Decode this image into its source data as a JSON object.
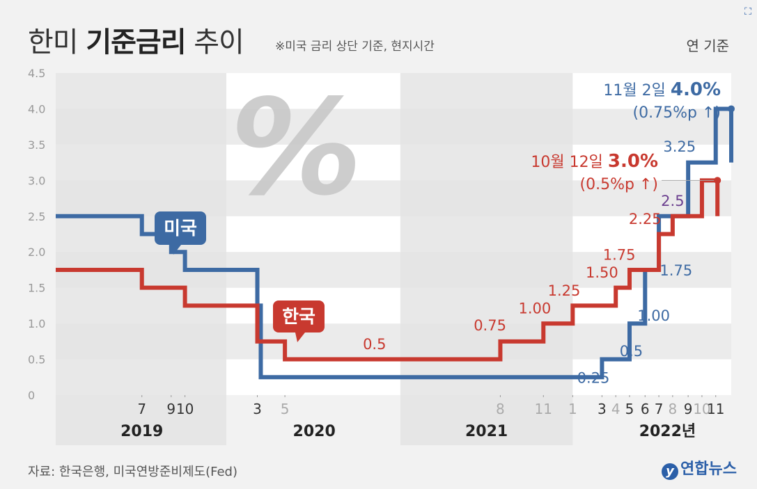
{
  "header": {
    "title_light": "한미",
    "title_bold": "기준금리",
    "title_tail": "추이",
    "note": "※미국 금리 상단 기준, 현지시간",
    "basis": "연 기준"
  },
  "footer": {
    "source": "자료: 한국은행, 미국연방준비제도(Fed)",
    "logo": "연합뉴스"
  },
  "colors": {
    "us": "#3d6aa3",
    "kr": "#c8392f",
    "band": "#e4e4e4",
    "gridAlt": "#ffffff",
    "text": "#444444",
    "purple": "#6b3f8f"
  },
  "chart_data": {
    "type": "line",
    "step": true,
    "ylim": [
      0,
      4.5
    ],
    "yticks": [
      "0",
      "0.5",
      "1.0",
      "1.5",
      "2.0",
      "2.5",
      "3.0",
      "3.5",
      "4.0",
      "4.5"
    ],
    "years": [
      "2019",
      "2020",
      "2021",
      "2022년"
    ],
    "month_ticks": [
      {
        "x": 2019.5,
        "label": "7",
        "faded": false
      },
      {
        "x": 2019.67,
        "label": "9",
        "faded": false
      },
      {
        "x": 2019.75,
        "label": "10",
        "faded": false
      },
      {
        "x": 2020.17,
        "label": "3",
        "faded": false
      },
      {
        "x": 2020.33,
        "label": "5",
        "faded": true
      },
      {
        "x": 2021.58,
        "label": "8",
        "faded": true
      },
      {
        "x": 2021.83,
        "label": "11",
        "faded": true
      },
      {
        "x": 2022.0,
        "label": "1",
        "faded": true
      },
      {
        "x": 2022.17,
        "label": "3",
        "faded": false
      },
      {
        "x": 2022.25,
        "label": "4",
        "faded": true
      },
      {
        "x": 2022.33,
        "label": "5",
        "faded": false
      },
      {
        "x": 2022.42,
        "label": "6",
        "faded": false
      },
      {
        "x": 2022.5,
        "label": "7",
        "faded": false
      },
      {
        "x": 2022.58,
        "label": "8",
        "faded": true
      },
      {
        "x": 2022.67,
        "label": "9",
        "faded": false
      },
      {
        "x": 2022.75,
        "label": "10",
        "faded": true
      },
      {
        "x": 2022.83,
        "label": "11",
        "faded": false
      }
    ],
    "series": [
      {
        "name": "미국",
        "points": [
          [
            2019.0,
            2.5
          ],
          [
            2019.5,
            2.25
          ],
          [
            2019.67,
            2.0
          ],
          [
            2019.75,
            1.75
          ],
          [
            2020.17,
            1.25
          ],
          [
            2020.19,
            0.25
          ],
          [
            2022.17,
            0.5
          ],
          [
            2022.33,
            1.0
          ],
          [
            2022.42,
            1.75
          ],
          [
            2022.5,
            2.5
          ],
          [
            2022.67,
            3.25
          ],
          [
            2022.83,
            4.0
          ]
        ],
        "end_marker": true
      },
      {
        "name": "한국",
        "points": [
          [
            2019.0,
            1.75
          ],
          [
            2019.5,
            1.5
          ],
          [
            2019.75,
            1.25
          ],
          [
            2020.17,
            0.75
          ],
          [
            2020.33,
            0.5
          ],
          [
            2021.58,
            0.75
          ],
          [
            2021.83,
            1.0
          ],
          [
            2022.0,
            1.25
          ],
          [
            2022.25,
            1.5
          ],
          [
            2022.33,
            1.75
          ],
          [
            2022.5,
            2.25
          ],
          [
            2022.58,
            2.5
          ],
          [
            2022.75,
            3.0
          ]
        ],
        "end_marker": true
      }
    ],
    "value_labels": [
      {
        "text": "0.25",
        "series": "미국",
        "x": 2022.12,
        "y": 0.25
      },
      {
        "text": "0.5",
        "series": "미국",
        "x": 2022.34,
        "y": 0.62
      },
      {
        "text": "1.00",
        "series": "미국",
        "x": 2022.47,
        "y": 1.12
      },
      {
        "text": "1.75",
        "series": "미국",
        "x": 2022.6,
        "y": 1.75
      },
      {
        "text": "2.5",
        "series": "미국",
        "x": 2022.58,
        "y": 2.72,
        "purple": true
      },
      {
        "text": "3.25",
        "series": "미국",
        "x": 2022.62,
        "y": 3.48
      },
      {
        "text": "0.5",
        "series": "한국",
        "x": 2020.85,
        "y": 0.72
      },
      {
        "text": "0.75",
        "series": "한국",
        "x": 2021.52,
        "y": 0.98
      },
      {
        "text": "1.00",
        "series": "한국",
        "x": 2021.78,
        "y": 1.22
      },
      {
        "text": "1.25",
        "series": "한국",
        "x": 2021.95,
        "y": 1.47
      },
      {
        "text": "1.50",
        "series": "한국",
        "x": 2022.17,
        "y": 1.72
      },
      {
        "text": "1.75",
        "series": "한국",
        "x": 2022.27,
        "y": 1.97
      },
      {
        "text": "2.25",
        "series": "한국",
        "x": 2022.42,
        "y": 2.47
      }
    ],
    "annotations": {
      "us_final_line1": "11월 2일",
      "us_final_value": "4.0%",
      "us_final_line2": "(0.75%p ↑)",
      "kr_final_line1": "10월 12일",
      "kr_final_value": "3.0%",
      "kr_final_line2": "(0.5%p ↑)"
    },
    "bubbles": {
      "us": "미국",
      "kr": "한국"
    },
    "decoration": "%"
  }
}
